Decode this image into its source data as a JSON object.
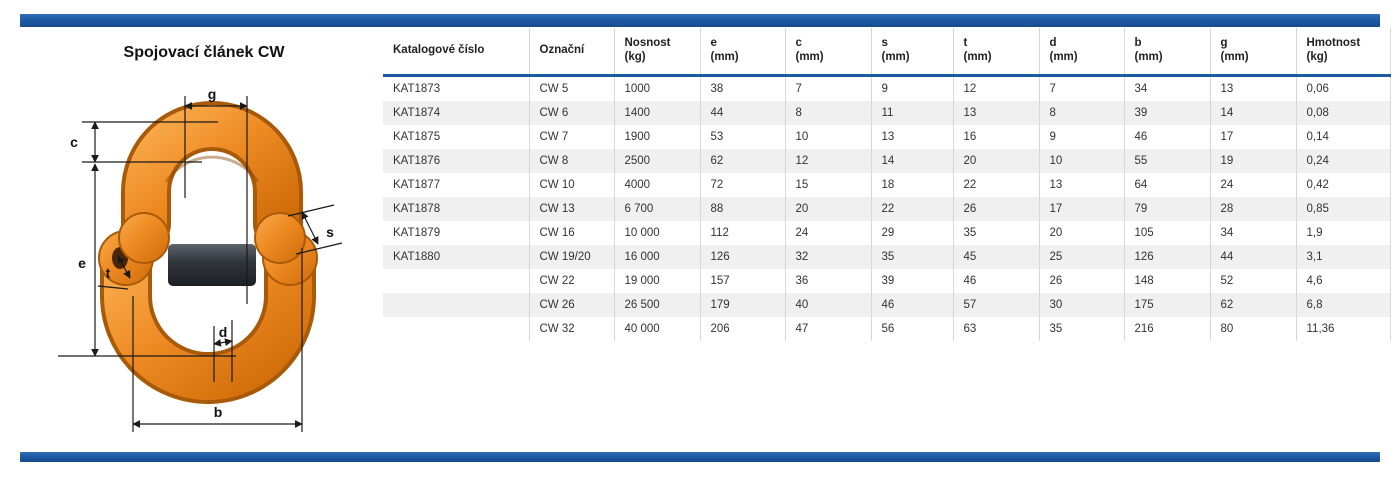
{
  "product": {
    "title": "Spojovací článek CW"
  },
  "diagram": {
    "labels": {
      "g": "g",
      "c": "c",
      "e": "e",
      "t": "t",
      "s": "s",
      "d": "d",
      "b": "b"
    }
  },
  "colors": {
    "accent_blue": "#1d5aa6",
    "link_orange": "#ee8a22",
    "pin_dark": "#2e3338",
    "row_stripe": "#f0f0f1"
  },
  "table": {
    "columns": [
      {
        "id": "katalog",
        "label": [
          "Katalogové číslo"
        ]
      },
      {
        "id": "oznacni",
        "label": [
          "Označní"
        ]
      },
      {
        "id": "nosnost",
        "label": [
          "Nosnost",
          "(kg)"
        ]
      },
      {
        "id": "e",
        "label": [
          "e",
          "(mm)"
        ]
      },
      {
        "id": "c",
        "label": [
          "c",
          "(mm)"
        ]
      },
      {
        "id": "s",
        "label": [
          "s",
          "(mm)"
        ]
      },
      {
        "id": "t",
        "label": [
          "t",
          "(mm)"
        ]
      },
      {
        "id": "d",
        "label": [
          "d",
          "(mm)"
        ]
      },
      {
        "id": "b",
        "label": [
          "b",
          "(mm)"
        ]
      },
      {
        "id": "g",
        "label": [
          "g",
          "(mm)"
        ]
      },
      {
        "id": "hmotnost",
        "label": [
          "Hmotnost",
          "(kg)"
        ]
      }
    ],
    "rows": [
      [
        "KAT1873",
        "CW 5",
        "1000",
        "38",
        "7",
        "9",
        "12",
        "7",
        "34",
        "13",
        "0,06"
      ],
      [
        "KAT1874",
        "CW 6",
        "1400",
        "44",
        "8",
        "11",
        "13",
        "8",
        "39",
        "14",
        "0,08"
      ],
      [
        "KAT1875",
        "CW 7",
        "1900",
        "53",
        "10",
        "13",
        "16",
        "9",
        "46",
        "17",
        "0,14"
      ],
      [
        "KAT1876",
        "CW 8",
        "2500",
        "62",
        "12",
        "14",
        "20",
        "10",
        "55",
        "19",
        "0,24"
      ],
      [
        "KAT1877",
        "CW 10",
        "4000",
        "72",
        "15",
        "18",
        "22",
        "13",
        "64",
        "24",
        "0,42"
      ],
      [
        "KAT1878",
        "CW 13",
        "6 700",
        "88",
        "20",
        "22",
        "26",
        "17",
        "79",
        "28",
        "0,85"
      ],
      [
        "KAT1879",
        "CW 16",
        "10 000",
        "112",
        "24",
        "29",
        "35",
        "20",
        "105",
        "34",
        "1,9"
      ],
      [
        "KAT1880",
        "CW 19/20",
        "16 000",
        "126",
        "32",
        "35",
        "45",
        "25",
        "126",
        "44",
        "3,1"
      ],
      [
        "",
        "CW 22",
        "19 000",
        "157",
        "36",
        "39",
        "46",
        "26",
        "148",
        "52",
        "4,6"
      ],
      [
        "",
        "CW 26",
        "26 500",
        "179",
        "40",
        "46",
        "57",
        "30",
        "175",
        "62",
        "6,8"
      ],
      [
        "",
        "CW 32",
        "40 000",
        "206",
        "47",
        "56",
        "63",
        "35",
        "216",
        "80",
        "11,36"
      ]
    ]
  }
}
